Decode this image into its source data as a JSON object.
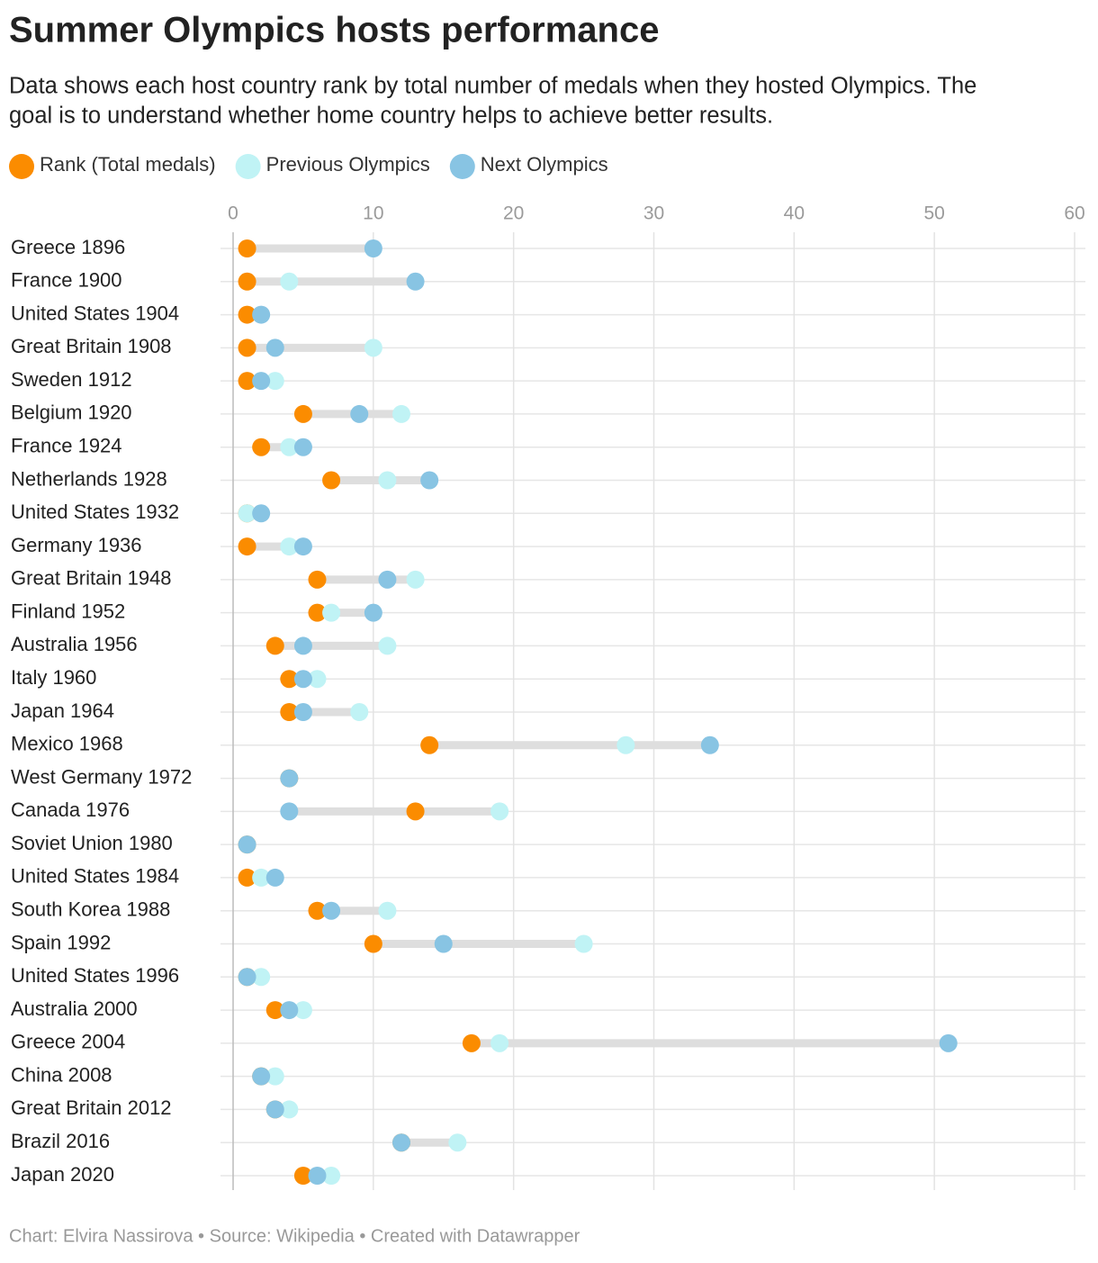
{
  "chart_data": {
    "type": "dot",
    "title": "Summer Olympics hosts performance",
    "subtitle": [
      "Data shows each host country rank by total number of medals when they hosted Olympics. The",
      "goal is to understand whether home country helps to achieve better results."
    ],
    "footer": "Chart: Elvira Nassirova • Source: Wikipedia • Created with Datawrapper",
    "categories": [
      "Greece 1896",
      "France 1900",
      "United States 1904",
      "Great Britain 1908",
      "Sweden 1912",
      "Belgium 1920",
      "France 1924",
      "Netherlands 1928",
      "United States 1932",
      "Germany 1936",
      "Great Britain 1948",
      "Finland 1952",
      "Australia 1956",
      "Italy 1960",
      "Japan 1964",
      "Mexico 1968",
      "West Germany 1972",
      "Canada 1976",
      "Soviet Union 1980",
      "United States 1984",
      "South Korea 1988",
      "Spain 1992",
      "United States 1996",
      "Australia 2000",
      "Greece 2004",
      "China 2008",
      "Great Britain 2012",
      "Brazil 2016",
      "Japan 2020"
    ],
    "series": [
      {
        "name": "Rank (Total medals)",
        "color": "#fb8c00",
        "values": [
          1,
          1,
          1,
          1,
          1,
          5,
          2,
          7,
          1,
          1,
          6,
          6,
          3,
          4,
          4,
          14,
          4,
          13,
          1,
          1,
          6,
          10,
          1,
          3,
          17,
          2,
          3,
          12,
          5
        ]
      },
      {
        "name": "Previous Olympics",
        "color": "#c0f3f5",
        "values": [
          null,
          4,
          null,
          10,
          3,
          12,
          4,
          11,
          1,
          4,
          13,
          7,
          11,
          6,
          9,
          28,
          null,
          19,
          null,
          2,
          11,
          25,
          2,
          5,
          19,
          3,
          4,
          16,
          7
        ]
      },
      {
        "name": "Next Olympics",
        "color": "#88c4e3",
        "values": [
          10,
          13,
          2,
          3,
          2,
          9,
          5,
          14,
          2,
          5,
          11,
          10,
          5,
          5,
          5,
          34,
          4,
          4,
          1,
          3,
          7,
          15,
          1,
          4,
          51,
          2,
          3,
          12,
          6
        ]
      }
    ],
    "xlim": [
      0,
      60
    ],
    "xticks": [
      0,
      10,
      20,
      30,
      40,
      50,
      60
    ],
    "grid": true
  }
}
